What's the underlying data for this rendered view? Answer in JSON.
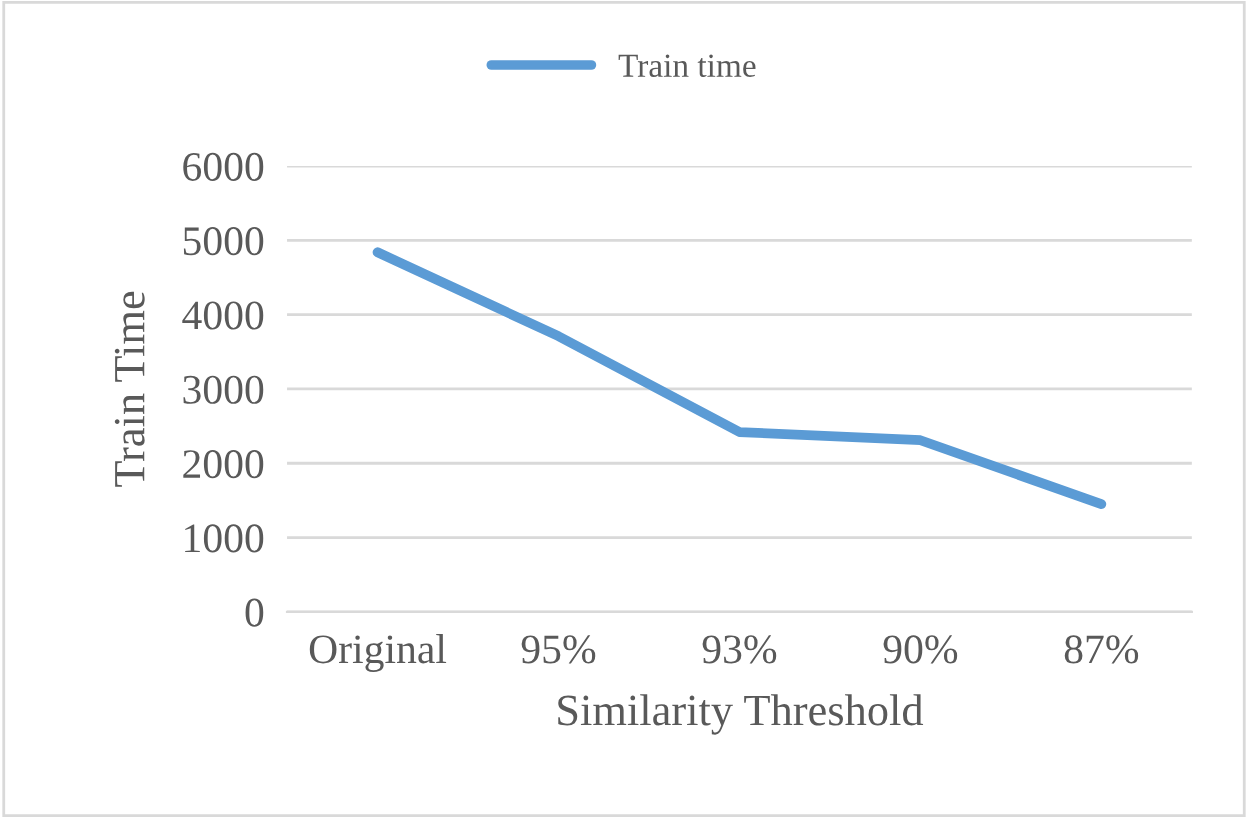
{
  "chart_data": {
    "type": "line",
    "xlabel": "Similarity Threshold",
    "ylabel": "Train Time",
    "categories": [
      "Original",
      "95%",
      "93%",
      "90%",
      "87%"
    ],
    "series": [
      {
        "name": "Train time",
        "color": "#5b9bd5",
        "values": [
          4840,
          3710,
          2420,
          2310,
          1450
        ]
      }
    ],
    "ylim": [
      0,
      6000
    ],
    "yticks": [
      0,
      1000,
      2000,
      3000,
      4000,
      5000,
      6000
    ],
    "grid": "y",
    "legend": "top",
    "marker": "none",
    "line_style": "solid"
  }
}
